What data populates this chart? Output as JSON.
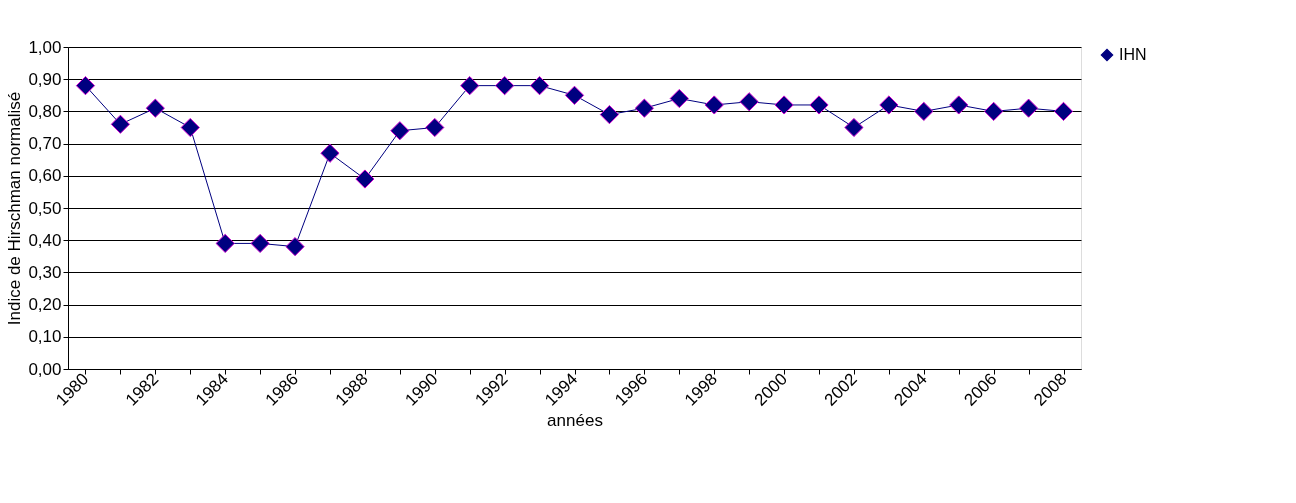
{
  "chart_data": {
    "type": "line",
    "xlabel": "années",
    "ylabel": "Indice de Hirschman normalisé",
    "categories": [
      "1980",
      null,
      "1982",
      null,
      "1984",
      null,
      "1986",
      null,
      "1988",
      null,
      "1990",
      null,
      "1992",
      null,
      "1994",
      null,
      "1996",
      null,
      "1998",
      null,
      "2000",
      null,
      "2002",
      null,
      "2004",
      null,
      "2006",
      null,
      "2008"
    ],
    "series": [
      {
        "name": "IHN",
        "color": "#000080",
        "values": [
          0.88,
          0.76,
          0.81,
          0.75,
          0.39,
          0.39,
          0.38,
          0.67,
          0.59,
          0.74,
          0.75,
          0.88,
          0.88,
          0.88,
          0.85,
          0.79,
          0.81,
          0.84,
          0.82,
          0.83,
          0.82,
          0.82,
          0.75,
          0.82,
          0.8,
          0.82,
          0.8,
          0.81,
          0.8
        ]
      }
    ],
    "ylim": [
      0,
      1
    ],
    "yticks": [
      {
        "value": 0,
        "label": "0,00"
      },
      {
        "value": 0.1,
        "label": "0,10"
      },
      {
        "value": 0.2,
        "label": "0,20"
      },
      {
        "value": 0.3,
        "label": "0,30"
      },
      {
        "value": 0.4,
        "label": "0,40"
      },
      {
        "value": 0.5,
        "label": "0,50"
      },
      {
        "value": 0.6,
        "label": "0,60"
      },
      {
        "value": 0.7,
        "label": "0,70"
      },
      {
        "value": 0.8,
        "label": "0,80"
      },
      {
        "value": 0.9,
        "label": "0,90"
      },
      {
        "value": 1,
        "label": "1,00"
      }
    ],
    "grid": "y",
    "legend": "right",
    "marker": "diamond",
    "line_style": "solid"
  }
}
